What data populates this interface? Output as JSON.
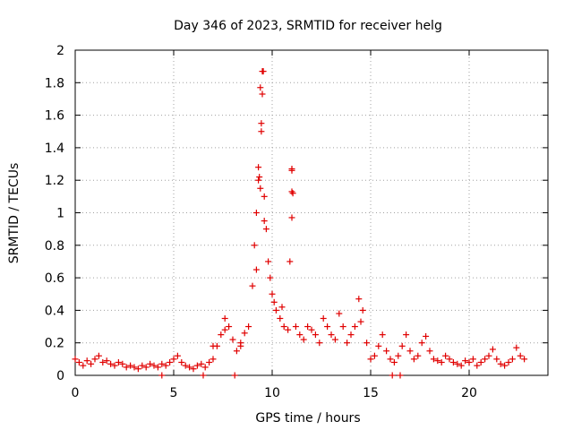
{
  "chart_data": {
    "type": "scatter",
    "title": "Day 346 of 2023, SRMTID for receiver helg",
    "xlabel": "GPS time / hours",
    "ylabel": "SRMTID / TECUs",
    "xlim": [
      0,
      24
    ],
    "ylim": [
      0,
      2
    ],
    "xticks": [
      0,
      5,
      10,
      15,
      20
    ],
    "yticks": [
      0,
      0.2,
      0.4,
      0.6,
      0.8,
      1,
      1.2,
      1.4,
      1.6,
      1.8,
      2
    ],
    "grid": true,
    "marker": "plus",
    "color": "#e00000",
    "series": [
      {
        "name": "SRMTID",
        "x": [
          0.0,
          0.2,
          0.4,
          0.6,
          0.8,
          1.0,
          1.2,
          1.4,
          1.6,
          1.8,
          2.0,
          2.2,
          2.4,
          2.6,
          2.8,
          3.0,
          3.2,
          3.4,
          3.6,
          3.8,
          4.0,
          4.2,
          4.4,
          4.6,
          4.8,
          5.0,
          5.2,
          5.4,
          5.6,
          5.8,
          6.0,
          6.2,
          6.4,
          6.6,
          6.8,
          7.0,
          7.2,
          7.4,
          7.6,
          7.8,
          8.0,
          8.2,
          8.4,
          8.6,
          8.8,
          9.0,
          9.1,
          9.2,
          9.3,
          9.4,
          9.45,
          9.5,
          9.55,
          9.6,
          9.7,
          9.8,
          9.9,
          10.0,
          10.1,
          10.2,
          10.4,
          10.6,
          10.8,
          10.9,
          11.0,
          11.05,
          11.2,
          11.4,
          11.6,
          11.8,
          12.0,
          12.2,
          12.4,
          12.6,
          12.8,
          13.0,
          13.2,
          13.4,
          13.6,
          13.8,
          14.0,
          14.2,
          14.4,
          14.6,
          14.8,
          15.0,
          15.2,
          15.4,
          15.6,
          15.8,
          16.0,
          16.2,
          16.4,
          16.6,
          16.8,
          17.0,
          17.2,
          17.4,
          17.6,
          17.8,
          18.0,
          18.2,
          18.4,
          18.6,
          18.8,
          19.0,
          19.2,
          19.4,
          19.6,
          19.8,
          20.0,
          20.2,
          20.4,
          20.6,
          20.8,
          21.0,
          21.2,
          21.4,
          21.6,
          21.8,
          22.0,
          22.2,
          22.4,
          22.6,
          22.8,
          4.4,
          6.5,
          8.1,
          16.1,
          16.5,
          9.4,
          9.5,
          9.45,
          9.3,
          9.35,
          11.0,
          11.0,
          11.0,
          9.2,
          9.6,
          10.5,
          14.5,
          7.0,
          7.6,
          8.4
        ],
        "y": [
          0.1,
          0.08,
          0.06,
          0.09,
          0.07,
          0.1,
          0.12,
          0.08,
          0.09,
          0.07,
          0.06,
          0.08,
          0.07,
          0.05,
          0.06,
          0.05,
          0.04,
          0.06,
          0.05,
          0.07,
          0.06,
          0.05,
          0.07,
          0.06,
          0.08,
          0.1,
          0.12,
          0.08,
          0.06,
          0.05,
          0.04,
          0.06,
          0.07,
          0.05,
          0.08,
          0.1,
          0.18,
          0.25,
          0.28,
          0.3,
          0.22,
          0.15,
          0.2,
          0.26,
          0.3,
          0.55,
          0.8,
          1.0,
          1.2,
          1.15,
          1.5,
          1.73,
          1.87,
          1.1,
          0.9,
          0.7,
          0.6,
          0.5,
          0.45,
          0.4,
          0.35,
          0.3,
          0.28,
          0.7,
          1.27,
          1.12,
          0.3,
          0.25,
          0.22,
          0.3,
          0.28,
          0.25,
          0.2,
          0.35,
          0.3,
          0.25,
          0.22,
          0.38,
          0.3,
          0.2,
          0.25,
          0.3,
          0.47,
          0.4,
          0.2,
          0.1,
          0.12,
          0.18,
          0.25,
          0.15,
          0.1,
          0.08,
          0.12,
          0.18,
          0.25,
          0.15,
          0.1,
          0.12,
          0.2,
          0.24,
          0.15,
          0.1,
          0.09,
          0.08,
          0.12,
          0.1,
          0.08,
          0.07,
          0.06,
          0.09,
          0.08,
          0.1,
          0.06,
          0.08,
          0.1,
          0.12,
          0.16,
          0.1,
          0.07,
          0.06,
          0.08,
          0.1,
          0.17,
          0.12,
          0.1,
          0.0,
          0.0,
          0.0,
          0.0,
          0.0,
          1.77,
          1.87,
          1.55,
          1.28,
          1.22,
          1.26,
          1.13,
          0.97,
          0.65,
          0.95,
          0.42,
          0.33,
          0.18,
          0.35,
          0.18
        ]
      }
    ]
  }
}
